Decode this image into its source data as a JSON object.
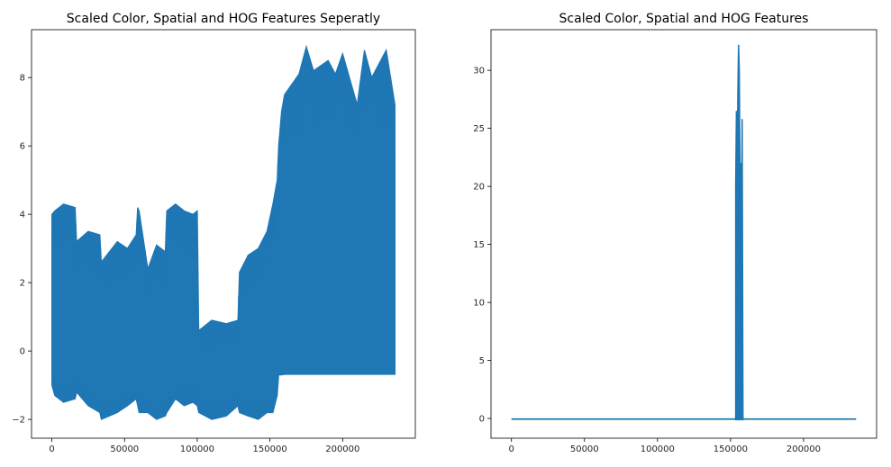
{
  "colors": {
    "line": "#1f77b4",
    "axes": "#000000",
    "text": "#262626"
  },
  "chart_data": [
    {
      "type": "line",
      "title": "Scaled Color, Spatial and HOG Features Seperatly",
      "xlabel": "",
      "ylabel": "",
      "xlim": [
        -14000,
        250000
      ],
      "ylim": [
        -2.55,
        9.4
      ],
      "xticks": [
        0,
        50000,
        100000,
        150000,
        200000
      ],
      "yticks": [
        -2,
        0,
        2,
        4,
        6,
        8
      ],
      "grid": false,
      "legend": "none",
      "series": [
        {
          "envelope_x": [
            0,
            2000,
            8000,
            16000,
            17000,
            25000,
            33000,
            34000,
            45000,
            52000,
            58000,
            59000,
            60000,
            66000,
            72000,
            78000,
            79000,
            85000,
            91000,
            97000,
            100000,
            101000,
            110000,
            120000,
            128000,
            129000,
            135000,
            142000,
            148000,
            152000,
            155000,
            156000,
            158000,
            160000,
            170000,
            175000,
            180000,
            190000,
            195000,
            200000,
            210000,
            215000,
            220000,
            230000,
            236000
          ],
          "upper": [
            4.0,
            4.1,
            4.3,
            4.2,
            3.2,
            3.5,
            3.4,
            2.6,
            3.2,
            3.0,
            3.4,
            4.2,
            4.1,
            2.4,
            3.1,
            2.9,
            4.1,
            4.3,
            4.1,
            4.0,
            4.1,
            0.6,
            0.9,
            0.8,
            0.9,
            2.3,
            2.8,
            3.0,
            3.5,
            4.3,
            5.0,
            6.0,
            7.0,
            7.5,
            8.1,
            8.9,
            8.2,
            8.5,
            8.1,
            8.7,
            7.2,
            8.8,
            8.0,
            8.8,
            7.2
          ],
          "lower": [
            -1.0,
            -1.3,
            -1.5,
            -1.4,
            -1.2,
            -1.6,
            -1.8,
            -2.0,
            -1.8,
            -1.6,
            -1.4,
            -1.6,
            -1.8,
            -1.8,
            -2.0,
            -1.9,
            -1.8,
            -1.4,
            -1.6,
            -1.5,
            -1.6,
            -1.8,
            -2.0,
            -1.9,
            -1.6,
            -1.8,
            -1.9,
            -2.0,
            -1.8,
            -1.8,
            -1.3,
            -0.7,
            -0.7,
            -0.68,
            -0.68,
            -0.68,
            -0.68,
            -0.68,
            -0.68,
            -0.68,
            -0.68,
            -0.68,
            -0.68,
            -0.68,
            -0.68
          ]
        }
      ]
    },
    {
      "type": "line",
      "title": "Scaled Color, Spatial and HOG Features",
      "xlabel": "",
      "ylabel": "",
      "xlim": [
        -14000,
        250000
      ],
      "ylim": [
        -1.7,
        33.5
      ],
      "xticks": [
        0,
        50000,
        100000,
        150000,
        200000
      ],
      "yticks": [
        0,
        5,
        10,
        15,
        20,
        25,
        30
      ],
      "grid": false,
      "legend": "none",
      "series": [
        {
          "baseline": -0.05,
          "x_end": 236000,
          "spike_x": [
            153500,
            154000,
            154500,
            155000,
            155500,
            156000,
            156500,
            157000,
            157500,
            158000,
            158500
          ],
          "spike_upper": [
            20.0,
            26.5,
            22.0,
            28.0,
            32.2,
            30.0,
            21.0,
            22.0,
            16.5,
            25.8,
            0.2
          ],
          "spike_lower": [
            -0.1,
            -0.1,
            -0.1,
            -0.1,
            -0.1,
            -0.1,
            -0.1,
            -0.1,
            -0.1,
            -0.1,
            -0.1
          ]
        }
      ]
    }
  ]
}
